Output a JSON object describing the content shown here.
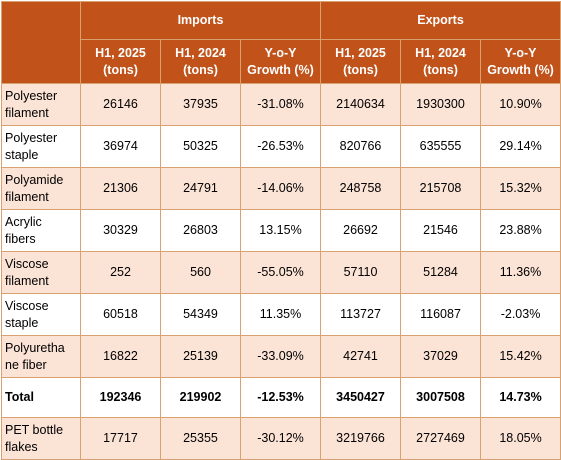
{
  "header": {
    "imports": "Imports",
    "exports": "Exports",
    "sub": [
      "H1, 2025\n(tons)",
      "H1, 2024\n(tons)",
      "Y-o-Y\nGrowth (%)",
      "H1, 2025\n(tons)",
      "H1, 2024\n(tons)",
      "Y-o-Y\nGrowth (%)"
    ]
  },
  "rows": [
    {
      "label": "Polyester\nfilament",
      "cells": [
        "26146",
        "37935",
        "-31.08%",
        "2140634",
        "1930300",
        "10.90%"
      ]
    },
    {
      "label": "Polyester\nstaple",
      "cells": [
        "36974",
        "50325",
        "-26.53%",
        "820766",
        "635555",
        "29.14%"
      ]
    },
    {
      "label": "Polyamide\nfilament",
      "cells": [
        "21306",
        "24791",
        "-14.06%",
        "248758",
        "215708",
        "15.32%"
      ]
    },
    {
      "label": "Acrylic\nfibers",
      "cells": [
        "30329",
        "26803",
        "13.15%",
        "26692",
        "21546",
        "23.88%"
      ]
    },
    {
      "label": "Viscose\nfilament",
      "cells": [
        "252",
        "560",
        "-55.05%",
        "57110",
        "51284",
        "11.36%"
      ]
    },
    {
      "label": "Viscose\nstaple",
      "cells": [
        "60518",
        "54349",
        "11.35%",
        "113727",
        "116087",
        "-2.03%"
      ]
    },
    {
      "label": "Polyuretha\nne fiber",
      "cells": [
        "16822",
        "25139",
        "-33.09%",
        "42741",
        "37029",
        "15.42%"
      ]
    },
    {
      "label": "Total",
      "cells": [
        "192346",
        "219902",
        "-12.53%",
        "3450427",
        "3007508",
        "14.73%"
      ]
    },
    {
      "label": "PET  bottle\nflakes",
      "cells": [
        "17717",
        "25355",
        "-30.12%",
        "3219766",
        "2727469",
        "18.05%"
      ]
    }
  ],
  "colors": {
    "header_bg": "#c0521a",
    "header_text": "#ffffff",
    "band_odd": "#fbe3d6",
    "band_even": "#ffffff",
    "border": "#d9a070"
  }
}
